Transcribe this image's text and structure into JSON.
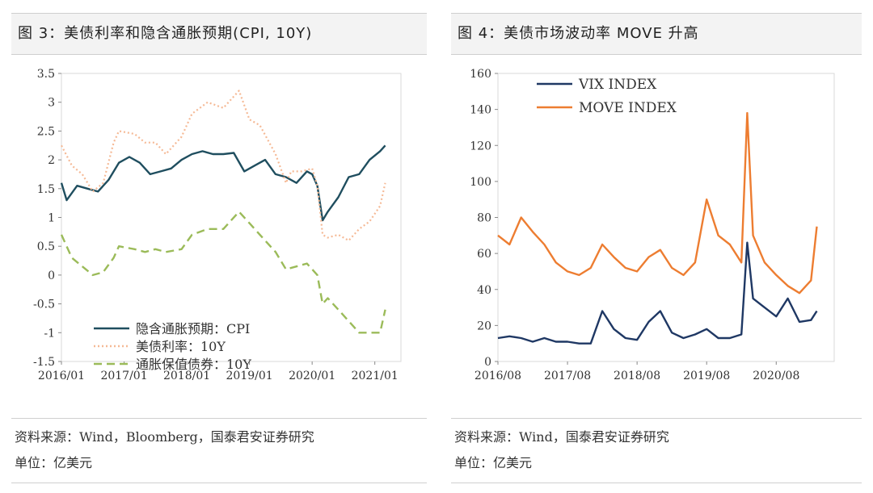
{
  "left": {
    "title": "图 3：美债利率和隐含通胀预期(CPI, 10Y)",
    "source": "资料来源：Wind，Bloomberg，国泰君安证券研究",
    "unit": "单位：亿美元"
  },
  "right": {
    "title": "图 4：美债市场波动率 MOVE 升高",
    "source": "资料来源：Wind，国泰君安证券研究",
    "unit": "单位：亿美元"
  },
  "chart_data": [
    {
      "type": "line",
      "x_tick_labels": [
        "2016/01",
        "2017/01",
        "2018/01",
        "2019/01",
        "2020/01",
        "2021/01"
      ],
      "ylim": [
        -1.5,
        3.5
      ],
      "y_ticks": [
        -1.5,
        -1,
        -0.5,
        0,
        0.5,
        1,
        1.5,
        2,
        2.5,
        3,
        3.5
      ],
      "legend_position": "lower-left",
      "series": [
        {
          "name": "隐含通胀预期：CPI",
          "color": "#1f4e5f",
          "style": "solid",
          "x": [
            "2016/01",
            "2016/02",
            "2016/04",
            "2016/06",
            "2016/08",
            "2016/10",
            "2016/12",
            "2017/02",
            "2017/04",
            "2017/06",
            "2017/08",
            "2017/10",
            "2017/12",
            "2018/02",
            "2018/04",
            "2018/06",
            "2018/08",
            "2018/10",
            "2018/12",
            "2019/02",
            "2019/04",
            "2019/06",
            "2019/08",
            "2019/10",
            "2019/12",
            "2020/01",
            "2020/02",
            "2020/03",
            "2020/04",
            "2020/06",
            "2020/08",
            "2020/10",
            "2020/12",
            "2021/02",
            "2021/03"
          ],
          "values": [
            1.6,
            1.3,
            1.55,
            1.5,
            1.45,
            1.65,
            1.95,
            2.05,
            1.95,
            1.75,
            1.8,
            1.85,
            2.0,
            2.1,
            2.15,
            2.1,
            2.1,
            2.12,
            1.8,
            1.9,
            2.0,
            1.75,
            1.7,
            1.6,
            1.8,
            1.75,
            1.55,
            0.95,
            1.1,
            1.35,
            1.7,
            1.75,
            2.0,
            2.15,
            2.25
          ]
        },
        {
          "name": "美债利率：10Y",
          "color": "#f5b995",
          "style": "dotted",
          "x": [
            "2016/01",
            "2016/03",
            "2016/05",
            "2016/07",
            "2016/09",
            "2016/11",
            "2016/12",
            "2017/03",
            "2017/05",
            "2017/07",
            "2017/09",
            "2017/12",
            "2018/02",
            "2018/05",
            "2018/08",
            "2018/11",
            "2019/01",
            "2019/03",
            "2019/06",
            "2019/08",
            "2019/09",
            "2019/11",
            "2020/01",
            "2020/02",
            "2020/03",
            "2020/04",
            "2020/06",
            "2020/08",
            "2020/10",
            "2020/12",
            "2021/02",
            "2021/03"
          ],
          "values": [
            2.25,
            1.9,
            1.75,
            1.45,
            1.6,
            2.3,
            2.5,
            2.45,
            2.3,
            2.3,
            2.1,
            2.4,
            2.8,
            3.0,
            2.9,
            3.2,
            2.7,
            2.6,
            2.1,
            1.6,
            1.8,
            1.8,
            1.85,
            1.55,
            0.7,
            0.65,
            0.7,
            0.6,
            0.8,
            0.93,
            1.2,
            1.6
          ]
        },
        {
          "name": "通胀保值债券：10Y",
          "color": "#9bbb59",
          "style": "dashed",
          "x": [
            "2016/01",
            "2016/03",
            "2016/05",
            "2016/07",
            "2016/09",
            "2016/11",
            "2016/12",
            "2017/03",
            "2017/05",
            "2017/07",
            "2017/09",
            "2017/12",
            "2018/02",
            "2018/05",
            "2018/08",
            "2018/11",
            "2019/01",
            "2019/03",
            "2019/06",
            "2019/08",
            "2019/10",
            "2019/12",
            "2020/01",
            "2020/02",
            "2020/03",
            "2020/04",
            "2020/06",
            "2020/08",
            "2020/10",
            "2020/12",
            "2021/02",
            "2021/03"
          ],
          "values": [
            0.7,
            0.3,
            0.15,
            0.0,
            0.05,
            0.3,
            0.5,
            0.45,
            0.4,
            0.45,
            0.4,
            0.45,
            0.7,
            0.8,
            0.8,
            1.1,
            0.9,
            0.7,
            0.4,
            0.1,
            0.15,
            0.2,
            0.1,
            0.0,
            -0.5,
            -0.4,
            -0.6,
            -0.8,
            -1.0,
            -1.0,
            -1.0,
            -0.6
          ]
        }
      ]
    },
    {
      "type": "line",
      "x_tick_labels": [
        "2016/08",
        "2017/08",
        "2018/08",
        "2019/08",
        "2020/08"
      ],
      "ylim": [
        0,
        160
      ],
      "y_ticks": [
        0,
        20,
        40,
        60,
        80,
        100,
        120,
        140,
        160
      ],
      "legend_position": "top-left",
      "series": [
        {
          "name": "VIX INDEX",
          "color": "#1f3864",
          "style": "solid",
          "x": [
            "2016/08",
            "2016/10",
            "2016/12",
            "2017/02",
            "2017/04",
            "2017/06",
            "2017/08",
            "2017/10",
            "2017/12",
            "2018/02",
            "2018/04",
            "2018/06",
            "2018/08",
            "2018/10",
            "2018/12",
            "2019/02",
            "2019/04",
            "2019/06",
            "2019/08",
            "2019/10",
            "2019/12",
            "2020/02",
            "2020/03",
            "2020/04",
            "2020/06",
            "2020/08",
            "2020/10",
            "2020/12",
            "2021/02",
            "2021/03"
          ],
          "values": [
            13,
            14,
            13,
            11,
            13,
            11,
            11,
            10,
            10,
            28,
            18,
            13,
            12,
            22,
            28,
            16,
            13,
            15,
            18,
            13,
            13,
            15,
            66,
            35,
            30,
            25,
            35,
            22,
            23,
            28
          ]
        },
        {
          "name": "MOVE INDEX",
          "color": "#ed7d31",
          "style": "solid",
          "x": [
            "2016/08",
            "2016/10",
            "2016/12",
            "2017/02",
            "2017/04",
            "2017/06",
            "2017/08",
            "2017/10",
            "2017/12",
            "2018/02",
            "2018/04",
            "2018/06",
            "2018/08",
            "2018/10",
            "2018/12",
            "2019/02",
            "2019/04",
            "2019/06",
            "2019/08",
            "2019/10",
            "2019/12",
            "2020/02",
            "2020/03",
            "2020/04",
            "2020/06",
            "2020/08",
            "2020/10",
            "2020/12",
            "2021/02",
            "2021/03"
          ],
          "values": [
            70,
            65,
            80,
            72,
            65,
            55,
            50,
            48,
            52,
            65,
            58,
            52,
            50,
            58,
            62,
            52,
            48,
            55,
            90,
            70,
            65,
            55,
            138,
            70,
            55,
            48,
            42,
            38,
            45,
            75
          ]
        }
      ]
    }
  ]
}
